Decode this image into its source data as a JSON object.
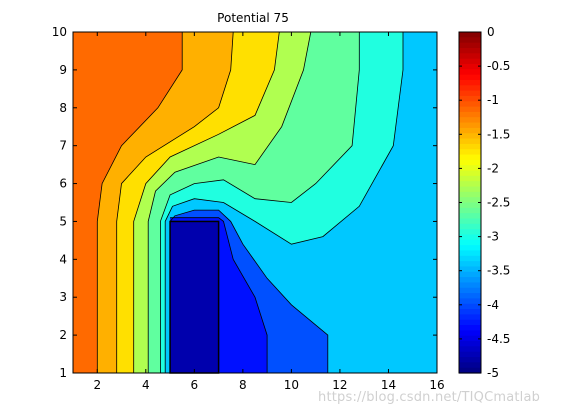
{
  "chart_data": {
    "type": "contour",
    "title": "Potential 75",
    "xlabel": "",
    "ylabel": "",
    "xlim": [
      1,
      16
    ],
    "ylim": [
      1,
      10
    ],
    "xticks": [
      2,
      4,
      6,
      8,
      10,
      12,
      14,
      16
    ],
    "yticks": [
      1,
      2,
      3,
      4,
      5,
      6,
      7,
      8,
      9,
      10
    ],
    "grid": false,
    "colorbar": {
      "colormap": "jet",
      "range": [
        -5,
        0
      ],
      "ticks": [
        "0",
        "-0.5",
        "-1",
        "-1.5",
        "-2",
        "-2.5",
        "-3",
        "-3.5",
        "-4",
        "-4.5",
        "-5"
      ],
      "tick_values": [
        0,
        -0.5,
        -1,
        -1.5,
        -2,
        -2.5,
        -3,
        -3.5,
        -4,
        -4.5,
        -5
      ]
    },
    "band_colors": [
      "#0000ad",
      "#0010ff",
      "#0050ff",
      "#0090ff",
      "#00c8ff",
      "#20ffe0",
      "#60ff9f",
      "#b0ff50",
      "#ffe000",
      "#ffb000",
      "#ff6a00"
    ],
    "contour_levels": [
      -4.5,
      -4.0,
      -3.5,
      -3.0,
      -2.5,
      -2.0,
      -1.75,
      -1.5
    ],
    "electrode": {
      "x": [
        5,
        7
      ],
      "y": [
        1,
        5
      ],
      "potential": -5
    },
    "contours": [
      {
        "level": -1.5,
        "points": [
          [
            2.0,
            1
          ],
          [
            2.0,
            5
          ],
          [
            2.2,
            6
          ],
          [
            3.0,
            7
          ],
          [
            4.5,
            8
          ],
          [
            5.5,
            9
          ],
          [
            5.5,
            10
          ]
        ]
      },
      {
        "level": -1.75,
        "points": [
          [
            2.8,
            1
          ],
          [
            2.8,
            5
          ],
          [
            3.0,
            6
          ],
          [
            4.0,
            6.7
          ],
          [
            6.0,
            7.5
          ],
          [
            7.0,
            8.0
          ],
          [
            7.5,
            9
          ],
          [
            7.6,
            10
          ]
        ]
      },
      {
        "level": -2.0,
        "points": [
          [
            3.5,
            1
          ],
          [
            3.5,
            5
          ],
          [
            4.0,
            6.0
          ],
          [
            5.0,
            6.7
          ],
          [
            7.0,
            7.3
          ],
          [
            8.5,
            7.8
          ],
          [
            9.3,
            9
          ],
          [
            9.5,
            10
          ]
        ]
      },
      {
        "level": -2.5,
        "points": [
          [
            4.1,
            1
          ],
          [
            4.1,
            5
          ],
          [
            4.4,
            5.8
          ],
          [
            5.2,
            6.3
          ],
          [
            7.0,
            6.7
          ],
          [
            8.5,
            6.5
          ],
          [
            9.6,
            7.5
          ],
          [
            10.5,
            9
          ],
          [
            10.8,
            10
          ]
        ]
      },
      {
        "level": -3.0,
        "points": [
          [
            4.6,
            1
          ],
          [
            4.6,
            5
          ],
          [
            5.0,
            5.7
          ],
          [
            6.0,
            6.0
          ],
          [
            7.2,
            6.1
          ],
          [
            8.5,
            5.6
          ],
          [
            10.0,
            5.5
          ],
          [
            11.0,
            6.0
          ],
          [
            12.5,
            7.0
          ],
          [
            12.8,
            9
          ],
          [
            12.8,
            10
          ]
        ]
      },
      {
        "level": -3.5,
        "points": [
          [
            4.8,
            1
          ],
          [
            4.8,
            5
          ],
          [
            5.1,
            5.4
          ],
          [
            6.0,
            5.6
          ],
          [
            7.2,
            5.5
          ],
          [
            8.5,
            5.0
          ],
          [
            10.0,
            4.4
          ],
          [
            11.3,
            4.6
          ],
          [
            12.8,
            5.4
          ],
          [
            14.2,
            7.0
          ],
          [
            14.6,
            9
          ],
          [
            14.6,
            10
          ]
        ]
      },
      {
        "level": -4.0,
        "points": [
          [
            11.5,
            1
          ],
          [
            11.5,
            2.0
          ],
          [
            10.0,
            2.8
          ],
          [
            9.0,
            3.5
          ],
          [
            8.0,
            4.4
          ],
          [
            7.5,
            5.0
          ],
          [
            7.0,
            5.3
          ],
          [
            6.0,
            5.3
          ],
          [
            5.2,
            5.15
          ],
          [
            5.0,
            5
          ],
          [
            5.0,
            1
          ]
        ]
      },
      {
        "level": -4.5,
        "points": [
          [
            9.0,
            1
          ],
          [
            9.0,
            2.0
          ],
          [
            8.5,
            3.0
          ],
          [
            7.6,
            4.0
          ],
          [
            7.2,
            5.0
          ],
          [
            7.0,
            5.1
          ],
          [
            5.0,
            5.1
          ]
        ]
      }
    ]
  }
}
